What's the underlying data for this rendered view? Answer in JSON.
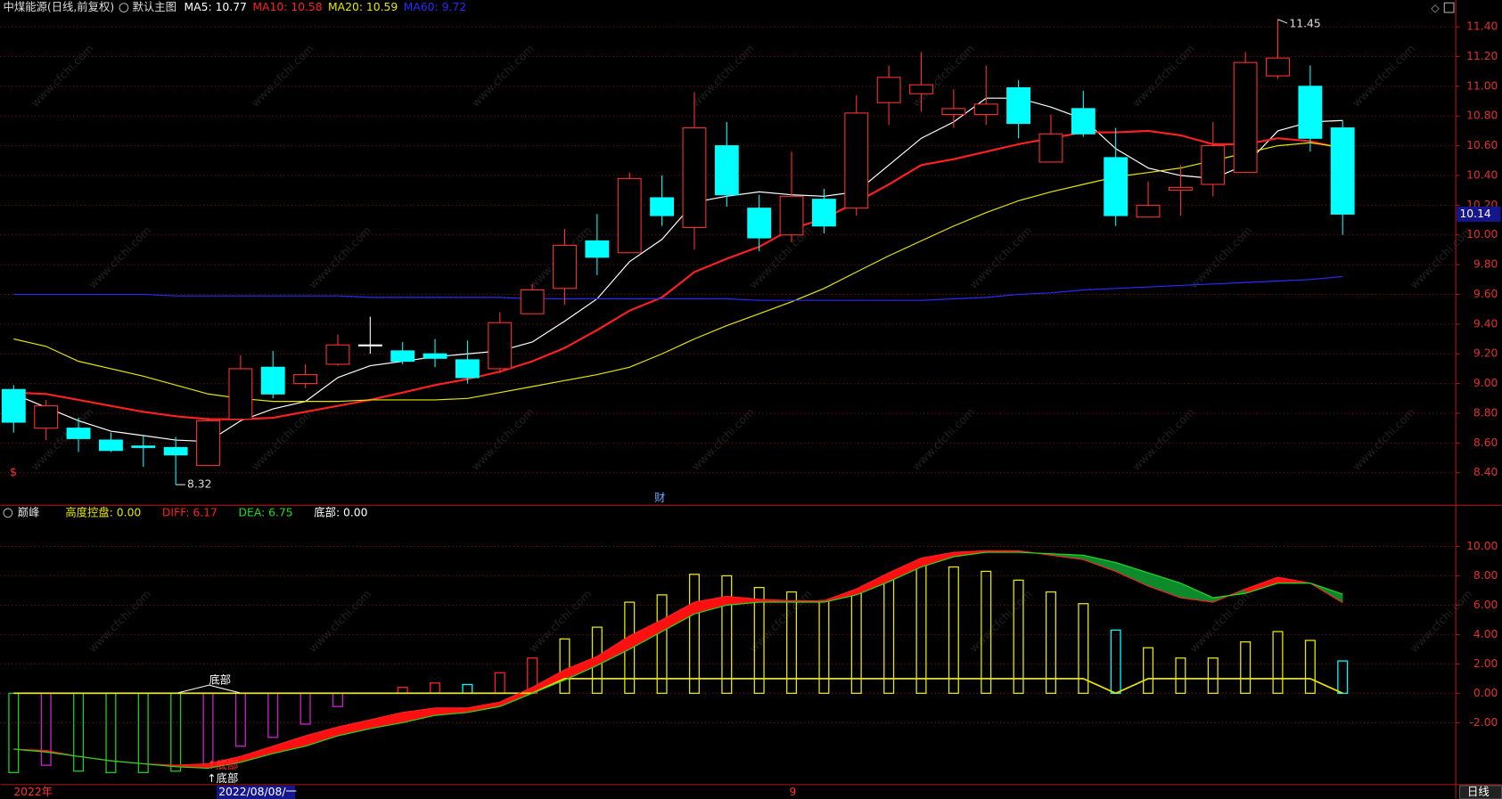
{
  "watermark": "www.cfchi.com",
  "chart_data": [
    {
      "type": "candlestick",
      "title": "中煤能源(日线,前复权)",
      "subtitle": "默认主图",
      "open": [
        8.96,
        8.7,
        8.7,
        8.62,
        8.58,
        8.57,
        8.45,
        8.76,
        9.11,
        9.0,
        9.13,
        9.26,
        9.22,
        9.2,
        9.16,
        9.1,
        9.47,
        9.64,
        9.96,
        9.88,
        10.25,
        10.05,
        10.6,
        10.18,
        10.0,
        10.24,
        10.18,
        10.89,
        10.95,
        10.81,
        10.81,
        10.99,
        10.49,
        10.85,
        10.52,
        10.12,
        10.3,
        10.34,
        10.42,
        11.07,
        11.0,
        10.72
      ],
      "high": [
        8.99,
        8.89,
        8.77,
        8.67,
        8.65,
        8.64,
        8.77,
        9.19,
        9.22,
        9.13,
        9.33,
        9.45,
        9.28,
        9.3,
        9.29,
        9.48,
        9.67,
        10.04,
        10.14,
        10.42,
        10.4,
        10.96,
        10.76,
        10.27,
        10.56,
        10.31,
        10.94,
        11.14,
        11.23,
        10.98,
        11.14,
        11.04,
        10.81,
        10.97,
        10.72,
        10.36,
        10.47,
        10.76,
        11.23,
        11.45,
        11.14,
        10.77
      ],
      "low": [
        8.67,
        8.62,
        8.54,
        8.54,
        8.44,
        8.32,
        8.45,
        8.76,
        8.9,
        8.97,
        9.12,
        9.2,
        9.13,
        9.11,
        9.0,
        9.07,
        9.47,
        9.53,
        9.73,
        9.88,
        10.06,
        9.9,
        10.19,
        9.89,
        9.95,
        10.01,
        10.13,
        10.74,
        10.83,
        10.72,
        10.74,
        10.65,
        10.49,
        10.66,
        10.06,
        10.12,
        10.13,
        10.26,
        10.42,
        11.05,
        10.56,
        10.0
      ],
      "close": [
        8.74,
        8.85,
        8.63,
        8.55,
        8.57,
        8.52,
        8.75,
        9.1,
        8.93,
        9.06,
        9.26,
        9.26,
        9.15,
        9.17,
        9.04,
        9.41,
        9.63,
        9.93,
        9.85,
        10.38,
        10.13,
        10.72,
        10.27,
        9.98,
        10.26,
        10.06,
        10.82,
        11.06,
        11.01,
        10.85,
        10.88,
        10.75,
        10.68,
        10.68,
        10.13,
        10.2,
        10.32,
        10.6,
        11.16,
        11.19,
        10.65,
        10.14
      ],
      "up_color": "#ff3232",
      "down_color": "#00ffff",
      "doji_color": "#ffffff",
      "series": [
        {
          "name": "MA5: 10.77",
          "color": "#ffffff",
          "values": [
            8.93,
            8.84,
            8.75,
            8.68,
            8.65,
            8.62,
            8.61,
            8.75,
            8.83,
            8.88,
            9.04,
            9.12,
            9.15,
            9.18,
            9.2,
            9.22,
            9.28,
            9.42,
            9.57,
            9.82,
            9.97,
            10.22,
            10.26,
            10.29,
            10.27,
            10.26,
            10.29,
            10.47,
            10.65,
            10.76,
            10.92,
            10.92,
            10.86,
            10.78,
            10.58,
            10.45,
            10.4,
            10.38,
            10.47,
            10.7,
            10.76,
            10.77
          ]
        },
        {
          "name": "MA10: 10.58",
          "color": "#ff2020",
          "values": [
            8.94,
            8.93,
            8.89,
            8.85,
            8.81,
            8.78,
            8.76,
            8.76,
            8.77,
            8.81,
            8.85,
            8.89,
            8.94,
            8.99,
            9.03,
            9.08,
            9.15,
            9.24,
            9.36,
            9.49,
            9.58,
            9.75,
            9.84,
            9.92,
            10.04,
            10.11,
            10.22,
            10.34,
            10.47,
            10.51,
            10.56,
            10.61,
            10.65,
            10.69,
            10.69,
            10.7,
            10.67,
            10.61,
            10.61,
            10.65,
            10.63,
            10.58
          ]
        },
        {
          "name": "MA20: 10.59",
          "color": "#e6e600",
          "values": [
            9.3,
            9.25,
            9.15,
            9.1,
            9.05,
            8.99,
            8.93,
            8.9,
            8.88,
            8.88,
            8.88,
            8.89,
            8.89,
            8.89,
            8.9,
            8.94,
            8.98,
            9.02,
            9.06,
            9.11,
            9.2,
            9.3,
            9.39,
            9.47,
            9.55,
            9.64,
            9.75,
            9.86,
            9.96,
            10.06,
            10.15,
            10.23,
            10.29,
            10.34,
            10.39,
            10.42,
            10.45,
            10.5,
            10.55,
            10.6,
            10.62,
            10.59
          ]
        },
        {
          "name": "MA60: 9.72",
          "color": "#2a2aff",
          "values": [
            9.6,
            9.6,
            9.6,
            9.6,
            9.6,
            9.59,
            9.59,
            9.59,
            9.59,
            9.59,
            9.59,
            9.58,
            9.58,
            9.58,
            9.58,
            9.58,
            9.57,
            9.57,
            9.57,
            9.57,
            9.57,
            9.57,
            9.57,
            9.56,
            9.56,
            9.56,
            9.56,
            9.56,
            9.56,
            9.57,
            9.58,
            9.6,
            9.61,
            9.63,
            9.64,
            9.65,
            9.66,
            9.67,
            9.68,
            9.69,
            9.7,
            9.72
          ]
        }
      ],
      "max_label": "11.45",
      "min_label": "8.32",
      "last_price_label": "10.14",
      "markers": [
        "$",
        "财"
      ],
      "ylim": [
        8.28,
        11.48
      ],
      "yticks": [
        {
          "value": 8.4,
          "label": "8.40"
        },
        {
          "value": 8.6,
          "label": "8.60"
        },
        {
          "value": 8.8,
          "label": "8.80"
        },
        {
          "value": 9.0,
          "label": "9.00"
        },
        {
          "value": 9.2,
          "label": "9.20"
        },
        {
          "value": 9.4,
          "label": "9.40"
        },
        {
          "value": 9.6,
          "label": "9.60"
        },
        {
          "value": 9.8,
          "label": "9.80"
        },
        {
          "value": 10.0,
          "label": "10.00"
        },
        {
          "value": 10.2,
          "label": "10.20"
        },
        {
          "value": 10.4,
          "label": "10.40"
        },
        {
          "value": 10.6,
          "label": "10.60"
        },
        {
          "value": 10.8,
          "label": "10.80"
        },
        {
          "value": 11.0,
          "label": "11.00"
        },
        {
          "value": 11.2,
          "label": "11.20"
        },
        {
          "value": 11.4,
          "label": "11.40"
        }
      ],
      "grid": true
    },
    {
      "type": "macd",
      "title": "巅峰",
      "bars": {
        "values": [
          -5.4,
          -4.9,
          -5.3,
          -5.4,
          -5.4,
          -5.3,
          -4.9,
          -3.6,
          -3.0,
          -2.1,
          -0.9,
          0,
          0.4,
          0.7,
          0.6,
          1.4,
          2.4,
          3.7,
          4.5,
          6.2,
          6.7,
          8.1,
          8.0,
          7.2,
          6.9,
          6.3,
          6.8,
          7.8,
          8.8,
          8.6,
          8.3,
          7.7,
          6.9,
          6.1,
          4.3,
          3.1,
          2.4,
          2.4,
          3.5,
          4.2,
          3.6,
          2.2
        ],
        "colors": [
          "#22cc22",
          "#cc22cc",
          "#22cc22",
          "#22cc22",
          "#22cc22",
          "#22cc22",
          "#cc22cc",
          "#cc22cc",
          "#cc22cc",
          "#cc22cc",
          "#cc22cc",
          "#e6e600",
          "#ff2020",
          "#ff2020",
          "#00ffff",
          "#ff2020",
          "#ff2020",
          "#e6e600",
          "#e6e600",
          "#e6e600",
          "#e6e600",
          "#e6e600",
          "#e6e600",
          "#e6e600",
          "#e6e600",
          "#e6e600",
          "#e6e600",
          "#e6e600",
          "#e6e600",
          "#e6e600",
          "#e6e600",
          "#e6e600",
          "#e6e600",
          "#e6e600",
          "#00ffff",
          "#e6e600",
          "#e6e600",
          "#e6e600",
          "#e6e600",
          "#e6e600",
          "#e6e600",
          "#00ffff"
        ]
      },
      "series": [
        {
          "name": "高度控盘: 0.00",
          "color": "#e6e600",
          "values": [
            0,
            0,
            0,
            0,
            0,
            0,
            0,
            0,
            0,
            0,
            0,
            0,
            0,
            0,
            0,
            0,
            0,
            1,
            1,
            1,
            1,
            1,
            1,
            1,
            1,
            1,
            1,
            1,
            1,
            1,
            1,
            1,
            1,
            1,
            0,
            1,
            1,
            1,
            1,
            1,
            1,
            0
          ]
        },
        {
          "name": "DIFF: 6.17",
          "color": "#ff2020",
          "values": [
            -3.8,
            -3.9,
            -4.3,
            -4.6,
            -4.8,
            -4.9,
            -4.8,
            -4.3,
            -3.6,
            -2.9,
            -2.3,
            -1.8,
            -1.3,
            -1.0,
            -1.0,
            -0.6,
            0.4,
            1.6,
            2.5,
            3.9,
            5.0,
            6.2,
            6.6,
            6.4,
            6.3,
            6.3,
            7.1,
            8.2,
            9.2,
            9.6,
            9.7,
            9.7,
            9.4,
            9.1,
            8.3,
            7.3,
            6.5,
            6.2,
            7.1,
            7.9,
            7.5,
            6.17
          ]
        },
        {
          "name": "DEA: 6.75",
          "color": "#22dd22",
          "values": [
            -3.8,
            -4.0,
            -4.3,
            -4.6,
            -4.8,
            -5.0,
            -5.1,
            -4.7,
            -4.1,
            -3.6,
            -2.9,
            -2.4,
            -2.0,
            -1.5,
            -1.3,
            -0.9,
            0.0,
            0.9,
            1.9,
            3.0,
            4.2,
            5.4,
            6.0,
            6.2,
            6.2,
            6.2,
            6.7,
            7.6,
            8.6,
            9.3,
            9.6,
            9.6,
            9.5,
            9.4,
            8.9,
            8.2,
            7.5,
            6.5,
            6.8,
            7.5,
            7.5,
            6.75
          ]
        },
        {
          "name": "底部: 0.00",
          "color": "#ffffff"
        }
      ],
      "fill_up_color": "#ff1010",
      "fill_down_color": "#0c8a2c",
      "annotations": [
        "底部",
        "↑底部",
        "↑底部"
      ],
      "x_labels": [
        "2022年",
        "2022/08/08/一",
        "9"
      ],
      "period": "日线",
      "ylim": [
        -6.2,
        12.6
      ],
      "yticks": [
        {
          "value": -2,
          "label": "-2.00"
        },
        {
          "value": 0,
          "label": "0.00"
        },
        {
          "value": 2,
          "label": "2.00"
        },
        {
          "value": 4,
          "label": "4.00"
        },
        {
          "value": 6,
          "label": "6.00"
        },
        {
          "value": 8,
          "label": "8.00"
        },
        {
          "value": 10,
          "label": "10.00"
        }
      ],
      "grid": true
    }
  ]
}
